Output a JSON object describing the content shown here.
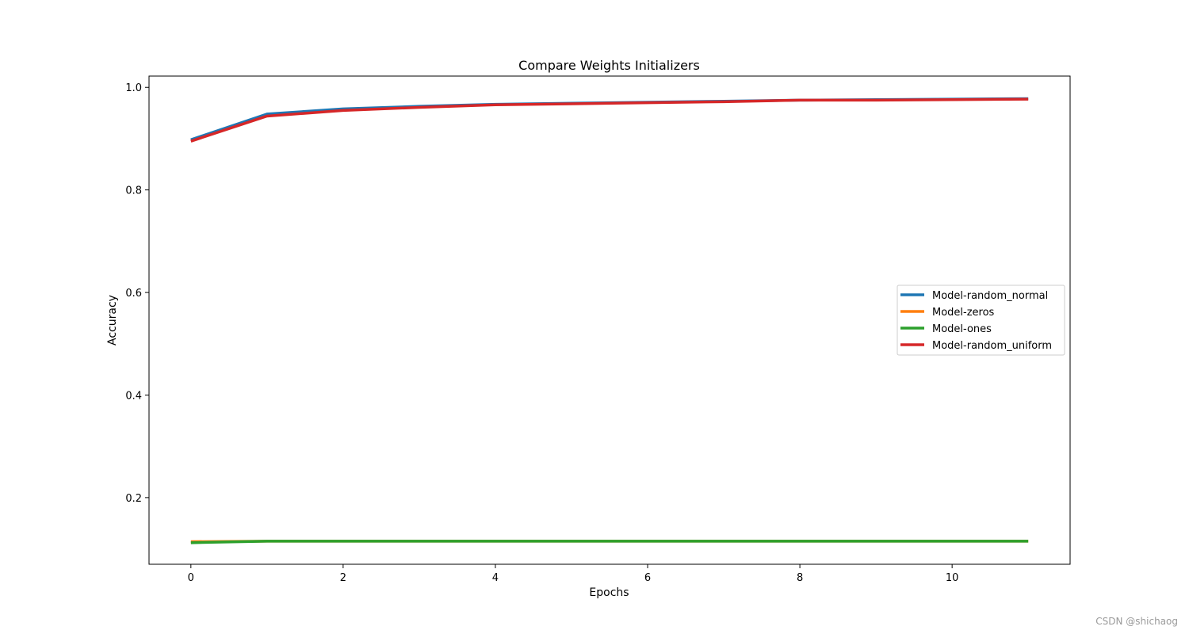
{
  "chart_data": {
    "type": "line",
    "title": "Compare Weights Initializers",
    "xlabel": "Epochs",
    "ylabel": "Accuracy",
    "xlim": [
      -0.55,
      11.55
    ],
    "ylim": [
      0.07,
      1.022
    ],
    "xticks": [
      0,
      2,
      4,
      6,
      8,
      10
    ],
    "yticks": [
      0.2,
      0.4,
      0.6,
      0.8,
      1.0
    ],
    "ytick_labels": [
      "0.2",
      "0.4",
      "0.6",
      "0.8",
      "1.0"
    ],
    "grid": false,
    "legend_position": "center-right",
    "x": [
      0,
      1,
      2,
      3,
      4,
      5,
      6,
      7,
      8,
      9,
      10,
      11
    ],
    "series": [
      {
        "name": "Model-random_normal",
        "color": "#1f77b4",
        "values": [
          0.898,
          0.948,
          0.958,
          0.963,
          0.967,
          0.969,
          0.971,
          0.973,
          0.975,
          0.976,
          0.977,
          0.978
        ]
      },
      {
        "name": "Model-zeros",
        "color": "#ff7f0e",
        "values": [
          0.114,
          0.115,
          0.115,
          0.115,
          0.115,
          0.115,
          0.115,
          0.115,
          0.115,
          0.115,
          0.115,
          0.115
        ]
      },
      {
        "name": "Model-ones",
        "color": "#2ca02c",
        "values": [
          0.112,
          0.115,
          0.115,
          0.115,
          0.115,
          0.115,
          0.115,
          0.115,
          0.115,
          0.115,
          0.115,
          0.115
        ]
      },
      {
        "name": "Model-random_uniform",
        "color": "#d62728",
        "values": [
          0.895,
          0.944,
          0.955,
          0.961,
          0.966,
          0.968,
          0.97,
          0.972,
          0.975,
          0.975,
          0.976,
          0.977
        ]
      }
    ]
  },
  "watermark": "CSDN @shichaog"
}
